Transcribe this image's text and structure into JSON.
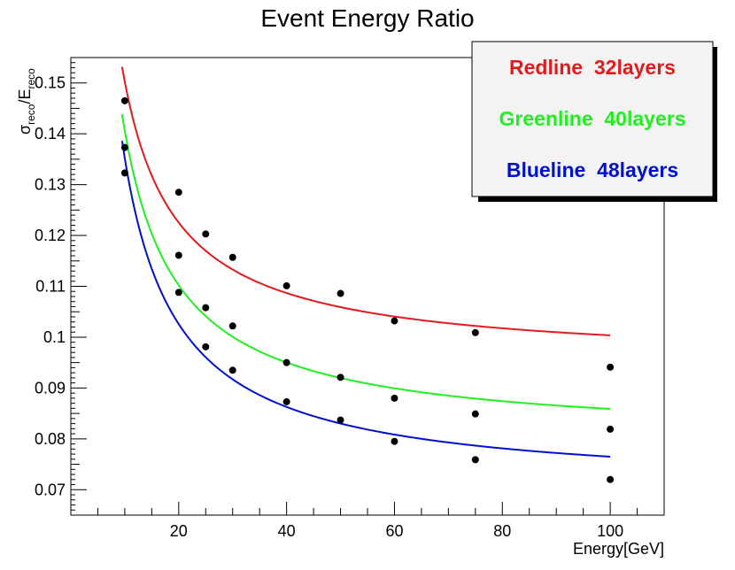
{
  "chart_data": {
    "type": "scatter",
    "title": "Event Energy Ratio",
    "xlabel": "Energy[GeV]",
    "ylabel": {
      "sigma": "σ",
      "sigma_sub": "reco",
      "e": "E",
      "e_sub": "reco"
    },
    "xlim": [
      0,
      110
    ],
    "ylim": [
      0.065,
      0.155
    ],
    "xticks": [
      20,
      40,
      60,
      80,
      100
    ],
    "xtick_labels": [
      "20",
      "40",
      "60",
      "80",
      "100"
    ],
    "yticks": [
      0.07,
      0.08,
      0.09,
      0.1,
      0.11,
      0.12,
      0.13,
      0.14,
      0.15
    ],
    "ytick_labels": [
      "0.07",
      "0.08",
      "0.09",
      "0.1",
      "0.11",
      "0.12",
      "0.13",
      "0.14",
      "0.15"
    ],
    "grid": false,
    "legend_position": "top-right",
    "series": [
      {
        "name": "Redline  32layers",
        "color": "#e31a1c",
        "points": [
          [
            10,
            0.1465
          ],
          [
            20,
            0.1285
          ],
          [
            25,
            0.1203
          ],
          [
            30,
            0.1157
          ],
          [
            40,
            0.1101
          ],
          [
            50,
            0.1086
          ],
          [
            60,
            0.1032
          ],
          [
            75,
            0.1009
          ],
          [
            100,
            0.0941
          ]
        ],
        "curve": {
          "from": 9.5,
          "to": 100,
          "values_at": [
            [
              9.5,
              0.1525
            ],
            [
              20,
              0.124
            ],
            [
              40,
              0.109
            ],
            [
              60,
              0.104
            ],
            [
              100,
              0.0993
            ]
          ]
        }
      },
      {
        "name": "Greenline  40layers",
        "color": "#22ee22",
        "points": [
          [
            10,
            0.1373
          ],
          [
            20,
            0.1161
          ],
          [
            25,
            0.1058
          ],
          [
            30,
            0.1022
          ],
          [
            40,
            0.095
          ],
          [
            50,
            0.0921
          ],
          [
            60,
            0.088
          ],
          [
            75,
            0.0849
          ],
          [
            100,
            0.0819
          ]
        ],
        "curve": {
          "from": 9.5,
          "to": 100,
          "values_at": [
            [
              9.5,
              0.1425
            ],
            [
              20,
              0.113
            ],
            [
              40,
              0.096
            ],
            [
              60,
              0.09
            ],
            [
              100,
              0.0834
            ]
          ]
        }
      },
      {
        "name": "Blueline  48layers",
        "color": "#0010cc",
        "points": [
          [
            10,
            0.1323
          ],
          [
            20,
            0.1088
          ],
          [
            25,
            0.0981
          ],
          [
            30,
            0.0935
          ],
          [
            40,
            0.0873
          ],
          [
            50,
            0.0837
          ],
          [
            60,
            0.0795
          ],
          [
            75,
            0.0759
          ],
          [
            100,
            0.072
          ]
        ],
        "curve": {
          "from": 9.5,
          "to": 100,
          "values_at": [
            [
              9.5,
              0.137
            ],
            [
              20,
              0.106
            ],
            [
              40,
              0.0875
            ],
            [
              60,
              0.0805
            ],
            [
              100,
              0.0738
            ]
          ]
        }
      }
    ]
  }
}
